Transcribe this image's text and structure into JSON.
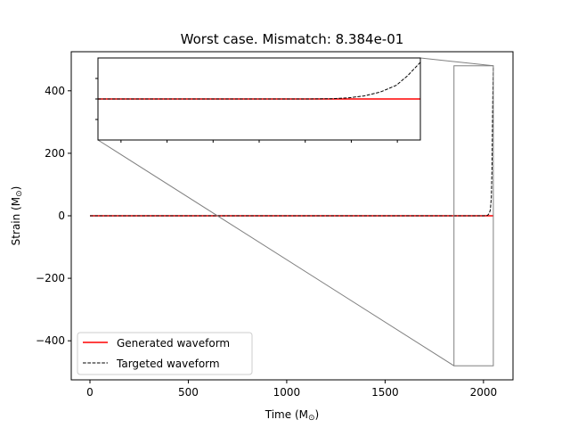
{
  "chart_data": {
    "type": "line",
    "title": "Worst case. Mismatch: 8.384e-01",
    "xlabel": "Time (M",
    "xlabel_sub": "⊙",
    "xlabel_close": ")",
    "ylabel": "Strain (M",
    "ylabel_sub": "⊙",
    "ylabel_close": ")",
    "xlim": [
      -95,
      2150
    ],
    "ylim": [
      -525,
      525
    ],
    "xticks": [
      0,
      500,
      1000,
      1500,
      2000
    ],
    "xtick_labels": [
      "0",
      "500",
      "1000",
      "1500",
      "2000"
    ],
    "yticks": [
      -400,
      -200,
      0,
      200,
      400
    ],
    "ytick_labels": [
      "−400",
      "−200",
      "0",
      "200",
      "400"
    ],
    "grid": false,
    "legend_position": "lower-left",
    "series": [
      {
        "name": "Generated waveform",
        "color": "#ff0000",
        "style": "solid",
        "x": [
          0,
          2050
        ],
        "y": [
          0,
          0
        ]
      },
      {
        "name": "Targeted waveform",
        "color": "#000000",
        "style": "dashed",
        "x": [
          0,
          2000,
          2020,
          2030,
          2035,
          2040,
          2043,
          2046,
          2048,
          2050
        ],
        "y": [
          0,
          0,
          1,
          8,
          20,
          60,
          150,
          300,
          420,
          480
        ]
      }
    ],
    "inset": {
      "xlim": [
        1850,
        2050
      ],
      "ylim": [
        -480,
        480
      ],
      "zoom_region": {
        "x": [
          1850,
          2050
        ],
        "y": [
          -480,
          480
        ]
      },
      "series": [
        {
          "name": "Generated waveform",
          "color": "#ff0000",
          "style": "solid",
          "x": [
            1850,
            2050
          ],
          "y": [
            0,
            0
          ]
        },
        {
          "name": "Targeted waveform",
          "color": "#000000",
          "style": "dashed",
          "x": [
            1850,
            1980,
            1995,
            2005,
            2015,
            2025,
            2035,
            2042,
            2050
          ],
          "y": [
            0,
            0,
            3,
            12,
            35,
            80,
            160,
            270,
            430
          ]
        }
      ]
    }
  }
}
